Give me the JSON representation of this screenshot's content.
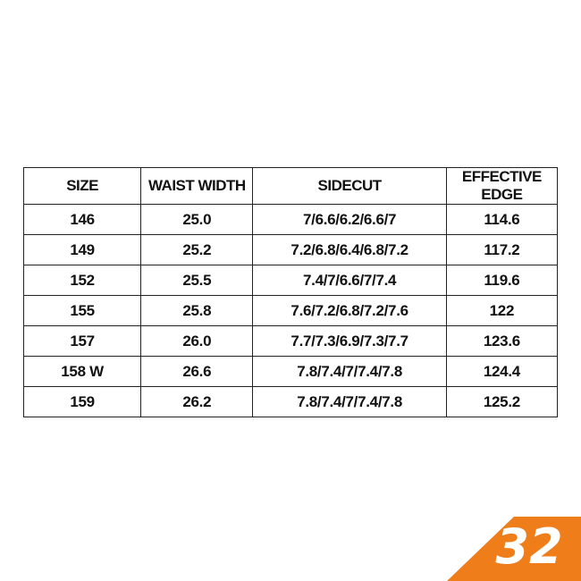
{
  "table": {
    "header": [
      "SIZE",
      "WAIST WIDTH",
      "SIDECUT",
      "EFFECTIVE EDGE"
    ],
    "rows": [
      [
        "146",
        "25.0",
        "7/6.6/6.2/6.6/7",
        "114.6"
      ],
      [
        "149",
        "25.2",
        "7.2/6.8/6.4/6.8/7.2",
        "117.2"
      ],
      [
        "152",
        "25.5",
        "7.4/7/6.6/7/7.4",
        "119.6"
      ],
      [
        "155",
        "25.8",
        "7.6/7.2/6.8/7.2/7.6",
        "122"
      ],
      [
        "157",
        "26.0",
        "7.7/7.3/6.9/7.3/7.7",
        "123.6"
      ],
      [
        "158 W",
        "26.6",
        "7.8/7.4/7/7.4/7.8",
        "124.4"
      ],
      [
        "159",
        "26.2",
        "7.8/7.4/7/7.4/7.8",
        "125.2"
      ]
    ]
  },
  "logo": {
    "text": "32"
  }
}
